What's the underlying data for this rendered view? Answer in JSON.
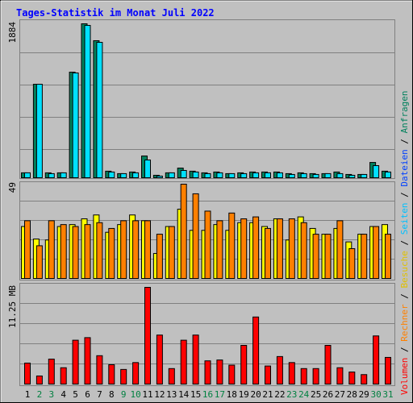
{
  "title": "Tages-Statistik im Monat Juli 2022",
  "legend": [
    {
      "text": "Volumen",
      "color": "#ff0000"
    },
    {
      "text": "Rechner",
      "color": "#ff8000"
    },
    {
      "text": "Besuche",
      "color": "#e0c000"
    },
    {
      "text": "Seiten",
      "color": "#00c0ff"
    },
    {
      "text": "Dateien",
      "color": "#0040ff"
    },
    {
      "text": "Anfragen",
      "color": "#00805c"
    }
  ],
  "legend_separator": " / ",
  "chart_data": [
    {
      "type": "bar",
      "ylim": [
        0,
        1884
      ],
      "yticks": [
        1884
      ],
      "series": [
        {
          "color": "#00805c",
          "values": [
            60,
            1144,
            60,
            60,
            1292,
            1884,
            1677,
            80,
            50,
            70,
            266,
            30,
            60,
            118,
            80,
            60,
            70,
            50,
            60,
            70,
            70,
            70,
            50,
            60,
            50,
            50,
            70,
            40,
            40,
            187,
            80
          ]
        },
        {
          "color": "#00e0ff",
          "values": [
            60,
            1144,
            50,
            60,
            1282,
            1864,
            1657,
            70,
            50,
            60,
            217,
            20,
            60,
            89,
            70,
            50,
            60,
            50,
            50,
            60,
            60,
            60,
            40,
            50,
            40,
            50,
            50,
            30,
            40,
            148,
            70
          ]
        }
      ]
    },
    {
      "type": "bar",
      "ylim": [
        0,
        49
      ],
      "yticks": [
        49
      ],
      "series": [
        {
          "color": "#ffff00",
          "values": [
            27,
            20.5,
            20,
            27,
            28,
            31,
            33,
            24,
            28,
            33,
            30,
            13,
            27,
            36,
            25,
            25,
            28,
            25,
            29,
            29,
            27,
            31,
            20,
            32,
            26,
            23,
            26,
            19,
            23,
            27,
            28
          ]
        },
        {
          "color": "#ff8000",
          "values": [
            30,
            17,
            30,
            28,
            27,
            28,
            29,
            26,
            30,
            30,
            30,
            23,
            27,
            49,
            44,
            35,
            30,
            34,
            31,
            32,
            26,
            31,
            31,
            29,
            23,
            23,
            30,
            15.5,
            23,
            27,
            23
          ]
        }
      ]
    },
    {
      "type": "bar",
      "ylim": [
        0,
        11.25
      ],
      "yticks": [
        {
          "value": 11.25,
          "label": "11.25 MB"
        }
      ],
      "categories": [
        "1",
        "2",
        "3",
        "4",
        "5",
        "6",
        "7",
        "8",
        "9",
        "10",
        "11",
        "12",
        "13",
        "14",
        "15",
        "16",
        "17",
        "18",
        "19",
        "20",
        "21",
        "22",
        "23",
        "24",
        "25",
        "26",
        "27",
        "28",
        "29",
        "30",
        "31"
      ],
      "category_colors": [
        "#000",
        "#008040",
        "#008040",
        "#000",
        "#000",
        "#000",
        "#000",
        "#000",
        "#008040",
        "#008040",
        "#000",
        "#000",
        "#000",
        "#000",
        "#000",
        "#008040",
        "#008040",
        "#000",
        "#000",
        "#000",
        "#000",
        "#000",
        "#008040",
        "#008040",
        "#000",
        "#000",
        "#000",
        "#000",
        "#000",
        "#008040",
        "#008040"
      ],
      "series": [
        {
          "color": "#ff0000",
          "values": [
            2.44,
            0.94,
            2.9,
            1.9,
            5.1,
            5.4,
            3.3,
            2.25,
            1.7,
            2.5,
            11.25,
            5.7,
            1.8,
            5.1,
            5.7,
            2.7,
            2.8,
            2.2,
            4.5,
            7.8,
            2.1,
            3.2,
            2.5,
            1.8,
            1.8,
            4.5,
            1.9,
            1.4,
            1.1,
            5.6,
            3.1
          ]
        }
      ]
    }
  ]
}
